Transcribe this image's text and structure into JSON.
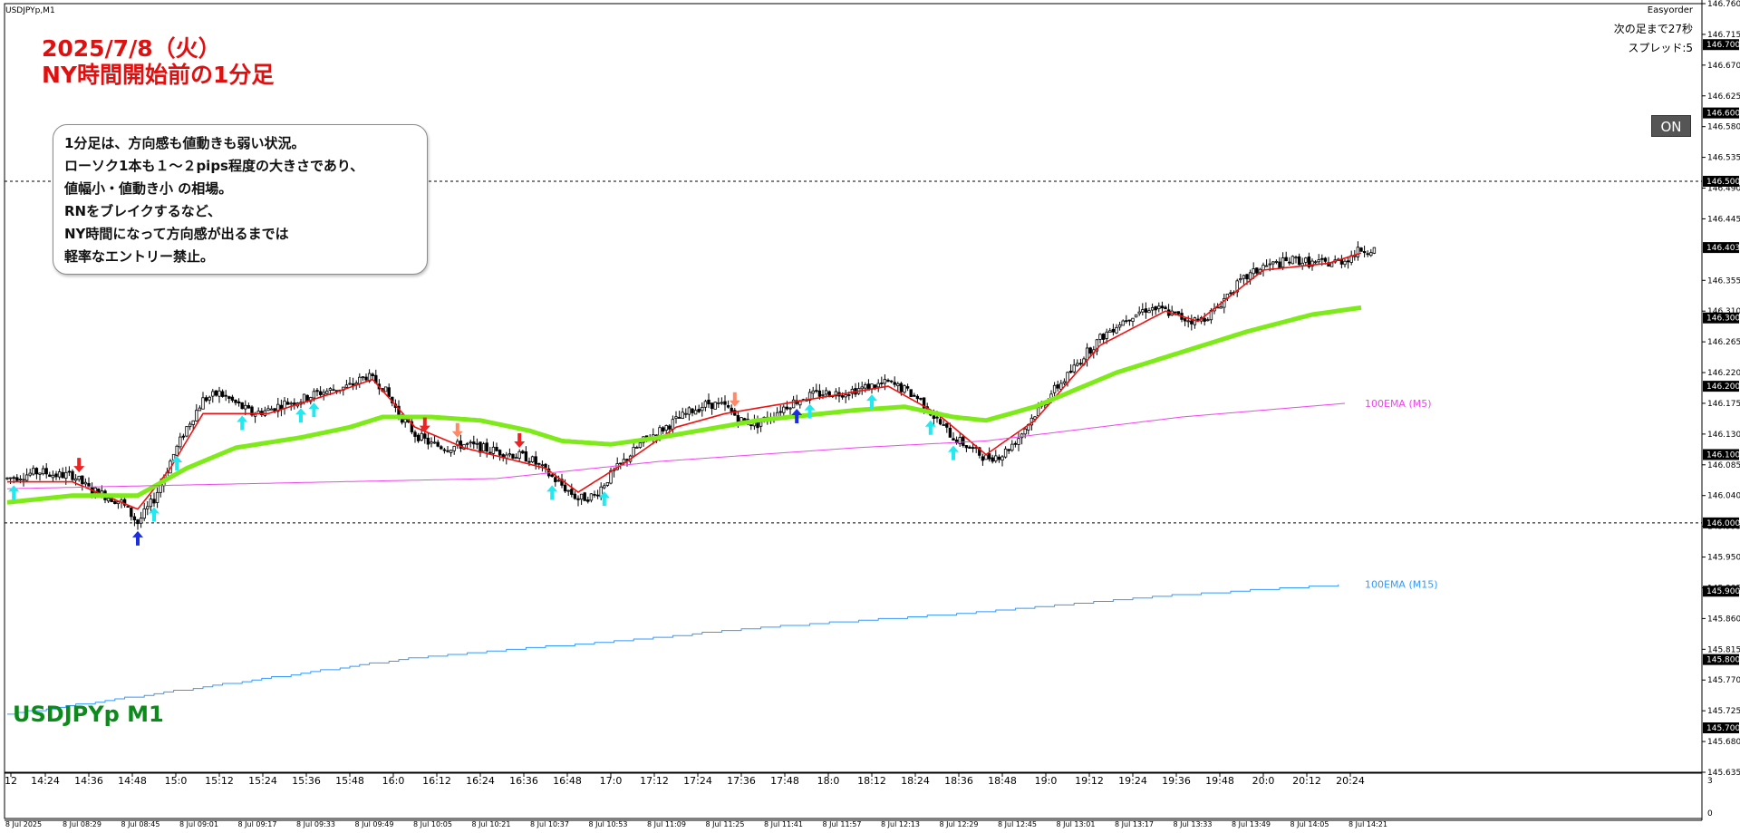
{
  "window": {
    "title": "USDJPYp,M1"
  },
  "headline": {
    "line1": "2025/7/8（火）",
    "line2": "NY時間開始前の1分足"
  },
  "note": {
    "lines": [
      "1分足は、方向感も値動きも弱い状況。",
      "ローソク1本も１～２pips程度の大きさであり、",
      "値幅小・値動き小 の相場。",
      "RNをブレイクするなど、",
      "NY時間になって方向感が出るまでは",
      "軽率なエントリー禁止。"
    ]
  },
  "info": {
    "label": "Easyorder",
    "next_bar": "次の足まで27秒",
    "spread": "スプレッド:5"
  },
  "button": {
    "label": "ON"
  },
  "symbol_label": "USDJPYp M1",
  "colors": {
    "ema_fast": "#ee1111",
    "ema_green": "#7fea1a",
    "ema_m5": "#ee44ee",
    "ema_m15": "#3399ff",
    "up_arrow": "#22e8f0",
    "down_arrow": "#ee2222",
    "down_arrow_light": "#ff8866",
    "up_arrow_dark": "#1a2ee0"
  },
  "chart_data": {
    "type": "candlestick",
    "ylim": [
      145.635,
      146.76
    ],
    "y_ticks": [
      146.76,
      146.715,
      146.67,
      146.625,
      146.58,
      146.535,
      146.49,
      146.445,
      146.355,
      146.31,
      146.265,
      146.22,
      146.175,
      146.13,
      146.085,
      146.04,
      145.995,
      145.95,
      145.905,
      145.86,
      145.815,
      145.77,
      145.725,
      145.68,
      145.635
    ],
    "price_labels": [
      146.7,
      146.6,
      146.5,
      146.403,
      146.3,
      146.2,
      146.1,
      146.0,
      145.9,
      145.8,
      145.7
    ],
    "current_price": 146.403,
    "round_number_lines": [
      146.5,
      146.0
    ],
    "x_time_labels": [
      "12",
      "14:24",
      "14:36",
      "14:48",
      "15:0",
      "15:12",
      "15:24",
      "15:36",
      "15:48",
      "16:0",
      "16:12",
      "16:24",
      "16:36",
      "16:48",
      "17:0",
      "17:12",
      "17:24",
      "17:36",
      "17:48",
      "18:0",
      "18:12",
      "18:24",
      "18:36",
      "18:48",
      "19:0",
      "19:12",
      "19:24",
      "19:36",
      "19:48",
      "20:0",
      "20:12",
      "20:24"
    ],
    "x_date_labels": [
      "8 Jul 2025",
      "8 Jul 08:29",
      "8 Jul 08:45",
      "8 Jul 09:01",
      "8 Jul 09:17",
      "8 Jul 09:33",
      "8 Jul 09:49",
      "8 Jul 10:05",
      "8 Jul 10:21",
      "8 Jul 10:37",
      "8 Jul 10:53",
      "8 Jul 11:09",
      "8 Jul 11:25",
      "8 Jul 11:41",
      "8 Jul 11:57",
      "8 Jul 12:13",
      "8 Jul 12:29",
      "8 Jul 12:45",
      "8 Jul 13:01",
      "8 Jul 13:17",
      "8 Jul 13:33",
      "8 Jul 13:49",
      "8 Jul 14:05",
      "8 Jul 14:21"
    ],
    "sub_panel_ticks": [
      "3",
      "0"
    ],
    "close_path": [
      [
        0,
        146.065
      ],
      [
        5,
        146.07
      ],
      [
        10,
        146.075
      ],
      [
        15,
        146.07
      ],
      [
        20,
        146.07
      ],
      [
        25,
        146.05
      ],
      [
        30,
        146.04
      ],
      [
        35,
        146.03
      ],
      [
        40,
        146.0
      ],
      [
        45,
        146.035
      ],
      [
        50,
        146.09
      ],
      [
        55,
        146.14
      ],
      [
        60,
        146.18
      ],
      [
        65,
        146.19
      ],
      [
        70,
        146.175
      ],
      [
        75,
        146.16
      ],
      [
        80,
        146.165
      ],
      [
        85,
        146.175
      ],
      [
        90,
        146.18
      ],
      [
        95,
        146.19
      ],
      [
        100,
        146.195
      ],
      [
        105,
        146.2
      ],
      [
        110,
        146.215
      ],
      [
        115,
        146.2
      ],
      [
        120,
        146.16
      ],
      [
        125,
        146.13
      ],
      [
        130,
        146.115
      ],
      [
        135,
        146.11
      ],
      [
        140,
        146.115
      ],
      [
        145,
        146.11
      ],
      [
        150,
        146.105
      ],
      [
        155,
        146.1
      ],
      [
        160,
        146.095
      ],
      [
        165,
        146.075
      ],
      [
        170,
        146.055
      ],
      [
        175,
        146.035
      ],
      [
        180,
        146.04
      ],
      [
        185,
        146.07
      ],
      [
        190,
        146.095
      ],
      [
        195,
        146.12
      ],
      [
        200,
        146.135
      ],
      [
        205,
        146.15
      ],
      [
        210,
        146.165
      ],
      [
        215,
        146.175
      ],
      [
        220,
        146.17
      ],
      [
        225,
        146.15
      ],
      [
        230,
        146.145
      ],
      [
        235,
        146.16
      ],
      [
        240,
        146.175
      ],
      [
        245,
        146.185
      ],
      [
        250,
        146.19
      ],
      [
        255,
        146.19
      ],
      [
        260,
        146.195
      ],
      [
        265,
        146.2
      ],
      [
        270,
        146.205
      ],
      [
        275,
        146.195
      ],
      [
        280,
        146.18
      ],
      [
        285,
        146.15
      ],
      [
        290,
        146.125
      ],
      [
        295,
        146.11
      ],
      [
        300,
        146.095
      ],
      [
        305,
        146.1
      ],
      [
        310,
        146.125
      ],
      [
        315,
        146.16
      ],
      [
        320,
        146.19
      ],
      [
        325,
        146.215
      ],
      [
        330,
        146.245
      ],
      [
        335,
        146.27
      ],
      [
        340,
        146.29
      ],
      [
        345,
        146.305
      ],
      [
        350,
        146.315
      ],
      [
        355,
        146.31
      ],
      [
        360,
        146.3
      ],
      [
        365,
        146.295
      ],
      [
        370,
        146.31
      ],
      [
        375,
        146.34
      ],
      [
        380,
        146.36
      ],
      [
        385,
        146.375
      ],
      [
        390,
        146.38
      ],
      [
        395,
        146.385
      ],
      [
        400,
        146.38
      ],
      [
        405,
        146.38
      ],
      [
        410,
        146.385
      ],
      [
        415,
        146.4
      ]
    ],
    "indicators": [
      {
        "name": "EMA fast",
        "points": [
          [
            0,
            146.06
          ],
          [
            20,
            146.06
          ],
          [
            40,
            146.02
          ],
          [
            50,
            146.08
          ],
          [
            60,
            146.16
          ],
          [
            80,
            146.16
          ],
          [
            100,
            146.19
          ],
          [
            112,
            146.21
          ],
          [
            125,
            146.14
          ],
          [
            140,
            146.11
          ],
          [
            165,
            146.08
          ],
          [
            175,
            146.045
          ],
          [
            190,
            146.09
          ],
          [
            205,
            146.14
          ],
          [
            220,
            146.16
          ],
          [
            245,
            146.18
          ],
          [
            270,
            146.2
          ],
          [
            285,
            146.16
          ],
          [
            300,
            146.1
          ],
          [
            315,
            146.15
          ],
          [
            335,
            146.26
          ],
          [
            355,
            146.31
          ],
          [
            365,
            146.295
          ],
          [
            385,
            146.37
          ],
          [
            405,
            146.38
          ],
          [
            415,
            146.395
          ]
        ]
      },
      {
        "name": "EMA green",
        "points": [
          [
            0,
            146.03
          ],
          [
            20,
            146.04
          ],
          [
            40,
            146.04
          ],
          [
            55,
            146.08
          ],
          [
            70,
            146.11
          ],
          [
            90,
            146.125
          ],
          [
            105,
            146.14
          ],
          [
            115,
            146.155
          ],
          [
            130,
            146.155
          ],
          [
            145,
            146.15
          ],
          [
            160,
            146.135
          ],
          [
            170,
            146.12
          ],
          [
            185,
            146.115
          ],
          [
            200,
            146.125
          ],
          [
            230,
            146.15
          ],
          [
            260,
            146.165
          ],
          [
            275,
            146.17
          ],
          [
            290,
            146.155
          ],
          [
            300,
            146.15
          ],
          [
            315,
            146.17
          ],
          [
            340,
            146.22
          ],
          [
            360,
            146.25
          ],
          [
            380,
            146.28
          ],
          [
            400,
            146.305
          ],
          [
            415,
            146.315
          ]
        ]
      },
      {
        "name": "100EMA (M5)",
        "points": [
          [
            0,
            146.05
          ],
          [
            100,
            146.06
          ],
          [
            150,
            146.065
          ],
          [
            200,
            146.09
          ],
          [
            260,
            146.11
          ],
          [
            300,
            146.12
          ],
          [
            360,
            146.155
          ],
          [
            410,
            146.175
          ]
        ]
      },
      {
        "name": "100EMA (M15)",
        "points": [
          [
            0,
            145.72
          ],
          [
            60,
            145.76
          ],
          [
            120,
            145.8
          ],
          [
            180,
            145.825
          ],
          [
            240,
            145.85
          ],
          [
            300,
            145.87
          ],
          [
            360,
            145.895
          ],
          [
            410,
            145.91
          ]
        ]
      }
    ],
    "signals": [
      {
        "i": 2,
        "dir": "up",
        "style": "cyan"
      },
      {
        "i": 22,
        "dir": "down",
        "style": "red"
      },
      {
        "i": 40,
        "dir": "up",
        "style": "dark"
      },
      {
        "i": 45,
        "dir": "up",
        "style": "cyan"
      },
      {
        "i": 52,
        "dir": "up",
        "style": "cyan"
      },
      {
        "i": 72,
        "dir": "up",
        "style": "cyan"
      },
      {
        "i": 90,
        "dir": "up",
        "style": "cyan"
      },
      {
        "i": 94,
        "dir": "up",
        "style": "cyan"
      },
      {
        "i": 128,
        "dir": "down",
        "style": "red"
      },
      {
        "i": 138,
        "dir": "down",
        "style": "light"
      },
      {
        "i": 157,
        "dir": "down",
        "style": "red"
      },
      {
        "i": 167,
        "dir": "up",
        "style": "cyan"
      },
      {
        "i": 183,
        "dir": "up",
        "style": "cyan"
      },
      {
        "i": 223,
        "dir": "down",
        "style": "light"
      },
      {
        "i": 242,
        "dir": "up",
        "style": "dark"
      },
      {
        "i": 246,
        "dir": "up",
        "style": "cyan"
      },
      {
        "i": 265,
        "dir": "up",
        "style": "cyan"
      },
      {
        "i": 283,
        "dir": "up",
        "style": "cyan"
      },
      {
        "i": 290,
        "dir": "up",
        "style": "cyan"
      }
    ]
  }
}
